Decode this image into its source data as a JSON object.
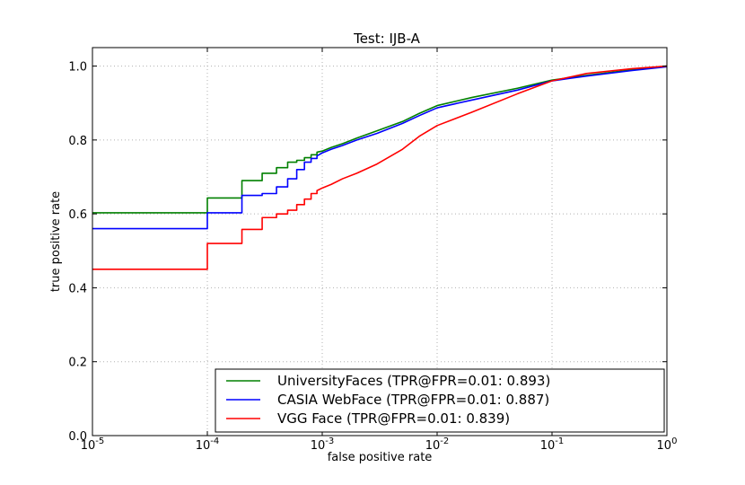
{
  "chart_data": {
    "type": "line",
    "title": "Test: IJB-A",
    "xlabel": "false positive rate",
    "ylabel": "true positive rate",
    "xscale": "log",
    "xlim": [
      1e-05,
      1
    ],
    "ylim": [
      0.0,
      1.05
    ],
    "grid": true,
    "legend_position": "lower-right",
    "x_ticks": [
      {
        "value": 1e-05,
        "base": "10",
        "exp": "-5"
      },
      {
        "value": 0.0001,
        "base": "10",
        "exp": "-4"
      },
      {
        "value": 0.001,
        "base": "10",
        "exp": "-3"
      },
      {
        "value": 0.01,
        "base": "10",
        "exp": "-2"
      },
      {
        "value": 0.1,
        "base": "10",
        "exp": "-1"
      },
      {
        "value": 1,
        "base": "10",
        "exp": "0"
      }
    ],
    "y_ticks": [
      {
        "value": 0.0,
        "label": "0.0"
      },
      {
        "value": 0.2,
        "label": "0.2"
      },
      {
        "value": 0.4,
        "label": "0.4"
      },
      {
        "value": 0.6,
        "label": "0.6"
      },
      {
        "value": 0.8,
        "label": "0.8"
      },
      {
        "value": 1.0,
        "label": "1.0"
      }
    ],
    "series": [
      {
        "name": "UniversityFaces (TPR@FPR=0.01: 0.893)",
        "color": "#008000",
        "points": [
          [
            1e-05,
            0.603
          ],
          [
            0.0001,
            0.603
          ],
          [
            0.0001,
            0.643
          ],
          [
            0.0002,
            0.643
          ],
          [
            0.0002,
            0.69
          ],
          [
            0.0003,
            0.69
          ],
          [
            0.0003,
            0.71
          ],
          [
            0.0004,
            0.71
          ],
          [
            0.0004,
            0.725
          ],
          [
            0.0005,
            0.725
          ],
          [
            0.0005,
            0.74
          ],
          [
            0.0006,
            0.74
          ],
          [
            0.0006,
            0.745
          ],
          [
            0.0007,
            0.745
          ],
          [
            0.0007,
            0.752
          ],
          [
            0.0008,
            0.752
          ],
          [
            0.0008,
            0.76
          ],
          [
            0.0009,
            0.76
          ],
          [
            0.0009,
            0.767
          ],
          [
            0.001,
            0.77
          ],
          [
            0.0012,
            0.78
          ],
          [
            0.0015,
            0.79
          ],
          [
            0.002,
            0.805
          ],
          [
            0.003,
            0.825
          ],
          [
            0.005,
            0.85
          ],
          [
            0.007,
            0.872
          ],
          [
            0.01,
            0.893
          ],
          [
            0.02,
            0.915
          ],
          [
            0.05,
            0.94
          ],
          [
            0.1,
            0.962
          ],
          [
            0.2,
            0.975
          ],
          [
            0.5,
            0.99
          ],
          [
            1.0,
            1.0
          ]
        ]
      },
      {
        "name": "CASIA WebFace (TPR@FPR=0.01: 0.887)",
        "color": "#0000ff",
        "points": [
          [
            1e-05,
            0.56
          ],
          [
            0.0001,
            0.56
          ],
          [
            0.0001,
            0.603
          ],
          [
            0.0002,
            0.603
          ],
          [
            0.0002,
            0.65
          ],
          [
            0.0003,
            0.65
          ],
          [
            0.0003,
            0.655
          ],
          [
            0.0004,
            0.655
          ],
          [
            0.0004,
            0.673
          ],
          [
            0.0005,
            0.673
          ],
          [
            0.0005,
            0.695
          ],
          [
            0.0006,
            0.695
          ],
          [
            0.0006,
            0.72
          ],
          [
            0.0007,
            0.72
          ],
          [
            0.0007,
            0.74
          ],
          [
            0.0008,
            0.74
          ],
          [
            0.0008,
            0.75
          ],
          [
            0.0009,
            0.75
          ],
          [
            0.0009,
            0.757
          ],
          [
            0.001,
            0.765
          ],
          [
            0.0012,
            0.775
          ],
          [
            0.0015,
            0.785
          ],
          [
            0.002,
            0.8
          ],
          [
            0.003,
            0.818
          ],
          [
            0.005,
            0.845
          ],
          [
            0.007,
            0.866
          ],
          [
            0.01,
            0.887
          ],
          [
            0.02,
            0.908
          ],
          [
            0.05,
            0.935
          ],
          [
            0.1,
            0.96
          ],
          [
            0.2,
            0.973
          ],
          [
            0.5,
            0.988
          ],
          [
            1.0,
            0.998
          ]
        ]
      },
      {
        "name": "VGG Face (TPR@FPR=0.01: 0.839)",
        "color": "#ff0000",
        "points": [
          [
            1e-05,
            0.45
          ],
          [
            0.0001,
            0.45
          ],
          [
            0.0001,
            0.52
          ],
          [
            0.0002,
            0.52
          ],
          [
            0.0002,
            0.558
          ],
          [
            0.0003,
            0.558
          ],
          [
            0.0003,
            0.59
          ],
          [
            0.0004,
            0.59
          ],
          [
            0.0004,
            0.6
          ],
          [
            0.0005,
            0.6
          ],
          [
            0.0005,
            0.61
          ],
          [
            0.0006,
            0.61
          ],
          [
            0.0006,
            0.625
          ],
          [
            0.0007,
            0.625
          ],
          [
            0.0007,
            0.64
          ],
          [
            0.0008,
            0.64
          ],
          [
            0.0008,
            0.655
          ],
          [
            0.0009,
            0.655
          ],
          [
            0.0009,
            0.663
          ],
          [
            0.001,
            0.67
          ],
          [
            0.0012,
            0.68
          ],
          [
            0.0015,
            0.695
          ],
          [
            0.002,
            0.71
          ],
          [
            0.003,
            0.735
          ],
          [
            0.005,
            0.775
          ],
          [
            0.007,
            0.81
          ],
          [
            0.01,
            0.839
          ],
          [
            0.02,
            0.875
          ],
          [
            0.05,
            0.925
          ],
          [
            0.1,
            0.96
          ],
          [
            0.2,
            0.98
          ],
          [
            0.5,
            0.993
          ],
          [
            1.0,
            1.0
          ]
        ]
      }
    ]
  }
}
